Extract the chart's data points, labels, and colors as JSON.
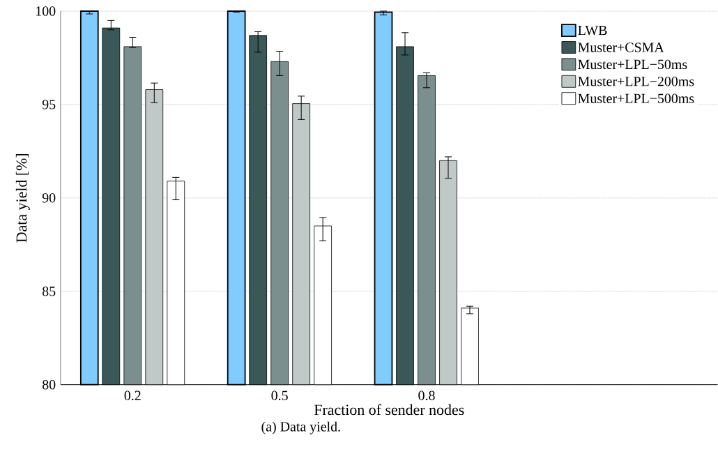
{
  "chart_data": {
    "type": "bar",
    "xlabel": "Fraction of sender nodes",
    "ylabel": "Data yield [%]",
    "categories": [
      "0.2",
      "0.5",
      "0.8"
    ],
    "series": [
      {
        "name": "LWB",
        "color": "#80ccff",
        "values": [
          100,
          100,
          99.95
        ],
        "errors": [
          [
            99.85,
            100
          ],
          [
            99.95,
            100
          ],
          [
            99.8,
            100
          ]
        ]
      },
      {
        "name": "Muster+CSMA",
        "color": "#3a5858",
        "values": [
          99.1,
          98.7,
          98.1
        ],
        "errors": [
          [
            99.0,
            99.5
          ],
          [
            97.8,
            98.9
          ],
          [
            97.65,
            98.85
          ]
        ]
      },
      {
        "name": "Muster+LPL−50ms",
        "color": "#7b8f8f",
        "values": [
          98.1,
          97.3,
          96.55
        ],
        "errors": [
          [
            98.05,
            98.6
          ],
          [
            96.55,
            97.85
          ],
          [
            95.9,
            96.7
          ]
        ]
      },
      {
        "name": "Muster+LPL−200ms",
        "color": "#c0c8c8",
        "values": [
          95.8,
          95.05,
          92.0
        ],
        "errors": [
          [
            95.1,
            96.15
          ],
          [
            94.2,
            95.45
          ],
          [
            91.05,
            92.2
          ]
        ]
      },
      {
        "name": "Muster+LPL−500ms",
        "color": "#ffffff",
        "values": [
          90.9,
          88.5,
          84.1
        ],
        "errors": [
          [
            89.9,
            91.1
          ],
          [
            87.7,
            88.95
          ],
          [
            83.8,
            84.2
          ]
        ]
      }
    ],
    "ylim": [
      80,
      100
    ],
    "yticks": [
      80,
      85,
      90,
      95,
      100
    ],
    "grid": "y",
    "legend": "top right",
    "annotations": [
      "(a) Data yield."
    ]
  }
}
